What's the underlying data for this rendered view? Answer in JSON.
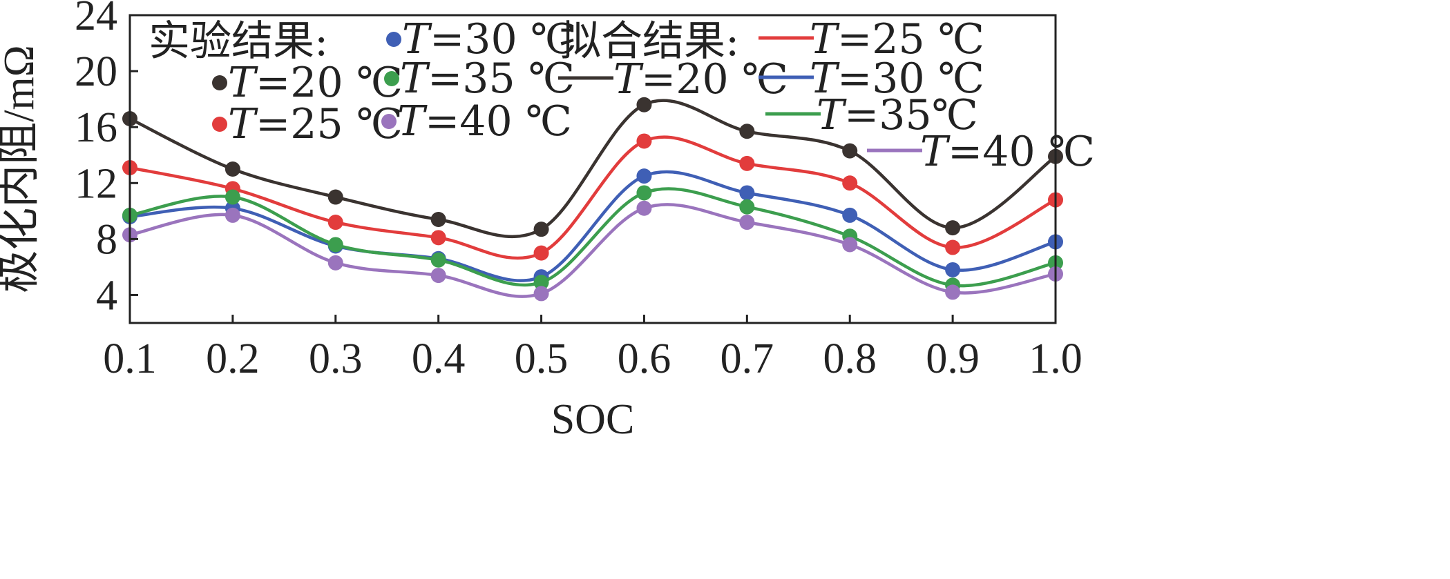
{
  "chart_data": {
    "type": "line",
    "xlabel": "SOC",
    "ylabel": "极化内阻/mΩ",
    "xlim": [
      0.1,
      1.0
    ],
    "ylim": [
      2,
      24
    ],
    "x_ticks": [
      "0.1",
      "0.2",
      "0.3",
      "0.4",
      "0.5",
      "0.6",
      "0.7",
      "0.8",
      "0.9",
      "1.0"
    ],
    "y_ticks": [
      "4",
      "8",
      "12",
      "16",
      "20",
      "24"
    ],
    "x": [
      0.1,
      0.2,
      0.3,
      0.4,
      0.5,
      0.6,
      0.7,
      0.8,
      0.9,
      1.0
    ],
    "legend": {
      "experimental_title": "实验结果:",
      "fitted_title": "拟合结果:",
      "placement": "top",
      "experimental_entries": [
        {
          "prefix": "T",
          "text": "=20 ℃",
          "series": 0
        },
        {
          "prefix": "T",
          "text": "=25 ℃",
          "series": 1
        },
        {
          "prefix": "T",
          "text": "=30 ℃",
          "series": 2
        },
        {
          "prefix": "T",
          "text": "=35 ℃",
          "series": 3
        },
        {
          "prefix": "T",
          "text": "=40 ℃",
          "series": 4
        }
      ],
      "fitted_entries": [
        {
          "prefix": "T",
          "text": "=20 ℃",
          "series": 0
        },
        {
          "prefix": "T",
          "text": "=25 ℃",
          "series": 1
        },
        {
          "prefix": "T",
          "text": "=30 ℃",
          "series": 2
        },
        {
          "prefix": "T",
          "text": "=35℃",
          "series": 3
        },
        {
          "prefix": "T",
          "text": "=40 ℃",
          "series": 4
        }
      ]
    },
    "series": [
      {
        "color": "#3a3330",
        "values": [
          16.6,
          13.0,
          11.0,
          9.4,
          8.7,
          17.6,
          15.7,
          14.3,
          8.8,
          13.9
        ]
      },
      {
        "color": "#e23c3c",
        "values": [
          13.1,
          11.6,
          9.2,
          8.1,
          7.0,
          15.0,
          13.4,
          12.0,
          7.4,
          10.8
        ]
      },
      {
        "color": "#3f5fb5",
        "values": [
          9.6,
          10.2,
          7.5,
          6.6,
          5.3,
          12.5,
          11.3,
          9.7,
          5.8,
          7.8
        ]
      },
      {
        "color": "#3c9e4e",
        "values": [
          9.7,
          11.0,
          7.6,
          6.5,
          4.9,
          11.3,
          10.3,
          8.2,
          4.7,
          6.3
        ]
      },
      {
        "color": "#9a74bd",
        "values": [
          8.3,
          9.7,
          6.3,
          5.4,
          4.1,
          10.2,
          9.2,
          7.6,
          4.2,
          5.5
        ]
      }
    ]
  }
}
